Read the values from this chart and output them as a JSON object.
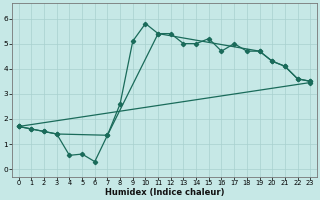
{
  "xlabel": "Humidex (Indice chaleur)",
  "xlim": [
    -0.5,
    23.5
  ],
  "ylim": [
    -0.3,
    6.6
  ],
  "xticks": [
    0,
    1,
    2,
    3,
    4,
    5,
    6,
    7,
    8,
    9,
    10,
    11,
    12,
    13,
    14,
    15,
    16,
    17,
    18,
    19,
    20,
    21,
    22,
    23
  ],
  "yticks": [
    0,
    1,
    2,
    3,
    4,
    5,
    6
  ],
  "bg_color": "#c6e8e6",
  "grid_color": "#a8d0ce",
  "line_color": "#1a6b5a",
  "line1_x": [
    0,
    1,
    2,
    3,
    4,
    5,
    6,
    7,
    8,
    9,
    10,
    11,
    12,
    13,
    14,
    15,
    16,
    17,
    18,
    19,
    20,
    21,
    22,
    23
  ],
  "line1_y": [
    1.7,
    1.6,
    1.5,
    1.4,
    0.55,
    0.6,
    0.3,
    1.35,
    2.6,
    5.1,
    5.8,
    5.4,
    5.4,
    5.0,
    5.0,
    5.2,
    4.7,
    5.0,
    4.7,
    4.7,
    4.3,
    4.1,
    3.6,
    3.5
  ],
  "line2_x": [
    0,
    1,
    2,
    3,
    7,
    11,
    19,
    20,
    21,
    22,
    23
  ],
  "line2_y": [
    1.7,
    1.6,
    1.5,
    1.4,
    1.35,
    5.4,
    4.7,
    4.3,
    4.1,
    3.6,
    3.5
  ],
  "line3_x": [
    0,
    23
  ],
  "line3_y": [
    1.7,
    3.45
  ],
  "xlabel_fontsize": 6.0,
  "tick_fontsize": 4.8
}
